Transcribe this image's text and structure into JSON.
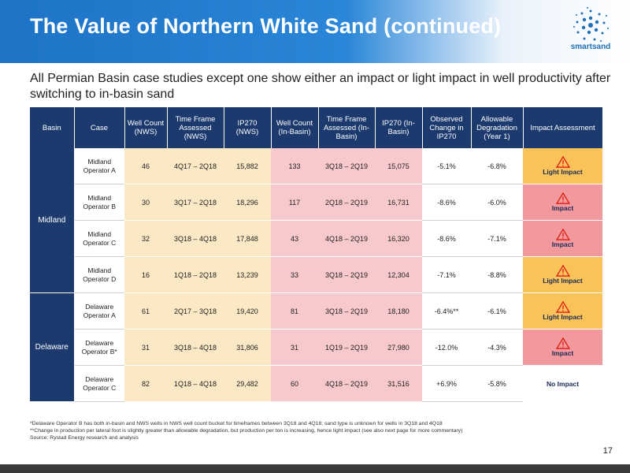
{
  "header": {
    "title": "The Value of Northern White Sand (continued)",
    "logo_text": "smartsand",
    "logo_icon": "dotted-swirl-icon"
  },
  "subtitle": "All Permian Basin case studies except one show either an impact or light impact in well productivity after switching to in-basin sand",
  "table": {
    "headers": [
      "Basin",
      "Case",
      "Well Count (NWS)",
      "Time Frame Assessed (NWS)",
      "IP270 (NWS)",
      "Well Count (In-Basin)",
      "Time Frame Assessed (In-Basin)",
      "IP270 (In-Basin)",
      "Observed Change in IP270",
      "Allowable Degradation (Year 1)",
      "Impact Assessment"
    ],
    "basin_groups": [
      {
        "name": "Midland",
        "rows": 4
      },
      {
        "name": "Delaware",
        "rows": 3
      }
    ],
    "rows": [
      {
        "case": "Midland Operator A",
        "nws_count": "46",
        "nws_time": "4Q17 – 2Q18",
        "nws_ip": "15,882",
        "inb_count": "133",
        "inb_time": "3Q18 – 2Q19",
        "inb_ip": "15,075",
        "change": "-5.1%",
        "allowable": "-6.8%",
        "assessment": "Light Impact",
        "level": "light"
      },
      {
        "case": "Midland Operator B",
        "nws_count": "30",
        "nws_time": "3Q17 – 2Q18",
        "nws_ip": "18,296",
        "inb_count": "117",
        "inb_time": "2Q18 – 2Q19",
        "inb_ip": "16,731",
        "change": "-8.6%",
        "allowable": "-6.0%",
        "assessment": "Impact",
        "level": "impact"
      },
      {
        "case": "Midland Operator C",
        "nws_count": "32",
        "nws_time": "3Q18 – 4Q18",
        "nws_ip": "17,848",
        "inb_count": "43",
        "inb_time": "4Q18 – 2Q19",
        "inb_ip": "16,320",
        "change": "-8.6%",
        "allowable": "-7.1%",
        "assessment": "Impact",
        "level": "impact"
      },
      {
        "case": "Midland Operator D",
        "nws_count": "16",
        "nws_time": "1Q18 – 2Q18",
        "nws_ip": "13,239",
        "inb_count": "33",
        "inb_time": "3Q18 – 2Q19",
        "inb_ip": "12,304",
        "change": "-7.1%",
        "allowable": "-8.8%",
        "assessment": "Light Impact",
        "level": "light"
      },
      {
        "case": "Delaware Operator A",
        "nws_count": "61",
        "nws_time": "2Q17 – 3Q18",
        "nws_ip": "19,420",
        "inb_count": "81",
        "inb_time": "3Q18 – 2Q19",
        "inb_ip": "18,180",
        "change": "-6.4%**",
        "allowable": "-6.1%",
        "assessment": "Light Impact",
        "level": "light"
      },
      {
        "case": "Delaware Operator B*",
        "nws_count": "31",
        "nws_time": "3Q18 – 4Q18",
        "nws_ip": "31,806",
        "inb_count": "31",
        "inb_time": "1Q19 – 2Q19",
        "inb_ip": "27,980",
        "change": "-12.0%",
        "allowable": "-4.3%",
        "assessment": "Impact",
        "level": "impact"
      },
      {
        "case": "Delaware Operator C",
        "nws_count": "82",
        "nws_time": "1Q18 – 4Q18",
        "nws_ip": "29,482",
        "inb_count": "60",
        "inb_time": "4Q18 – 2Q19",
        "inb_ip": "31,516",
        "change": "+6.9%",
        "allowable": "-5.8%",
        "assessment": "No Impact",
        "level": "none"
      }
    ]
  },
  "footnotes": [
    "*Delaware Operator B has both in-basin and NWS wells in NWS well count bucket for timeframes between 3Q18 and 4Q18; sand type is unknown for wells in 3Q18 and 4Q18",
    "**Change in production per lateral foot is slightly greater than allowable degradation, but production per ton is increasing, hence light impact (see also next page for more commentary)",
    "Source: Rystad Energy research and analysis"
  ],
  "page_number": "17",
  "colors": {
    "header_blue": "#1e73c6",
    "table_header": "#1c3a6e",
    "nws_fill": "#fbe9c6",
    "inbasin_fill": "#f7c9cc",
    "light_impact": "#f9c35a",
    "impact": "#f2999e",
    "warning_icon": "#e0261b"
  }
}
